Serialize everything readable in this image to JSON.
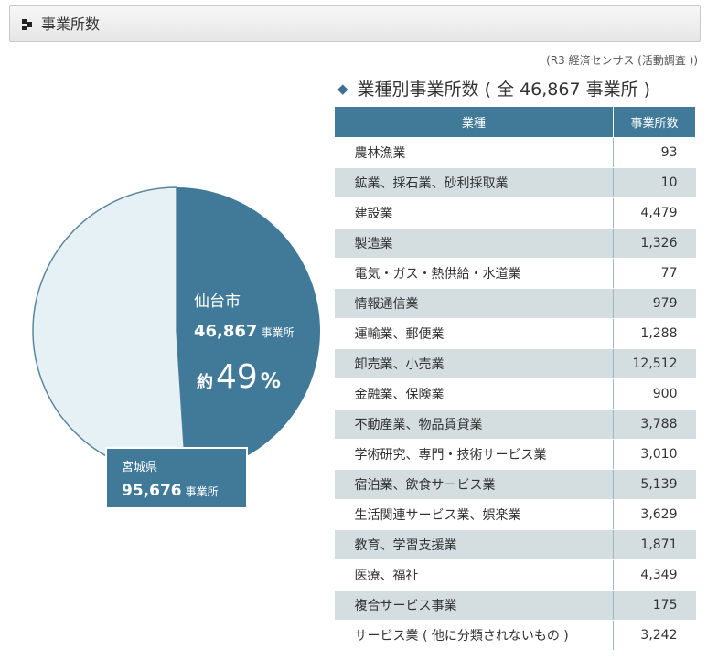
{
  "header": {
    "title": "事業所数"
  },
  "source_note": "(R3 経済センサス (活動調査 ))",
  "subtitle": "業種別事業所数 ( 全 46,867 事業所 )",
  "pie": {
    "sendai": {
      "label": "仙台市",
      "count": "46,867",
      "unit": "事業所",
      "approx_prefix": "約",
      "percent": "49",
      "percent_sign": "%"
    },
    "miyagi": {
      "label": "宮城県",
      "count": "95,676",
      "unit": "事業所"
    },
    "colors": {
      "sendai": "#417a99",
      "rest": "#e6f1f5",
      "outline": "#5a879f"
    }
  },
  "table": {
    "headers": [
      "業種",
      "事業所数"
    ],
    "colors": {
      "header": "#417a99",
      "stripe": "#d4dde0"
    }
  },
  "chart_data": [
    {
      "type": "pie",
      "categories": [
        "仙台市",
        "宮城県"
      ],
      "values": [
        46867,
        95676
      ],
      "title": "",
      "annotations": [
        "約49%"
      ]
    },
    {
      "type": "table",
      "title": "業種別事業所数 ( 全 46,867 事業所 )",
      "columns": [
        "業種",
        "事業所数"
      ],
      "rows": [
        {
          "name": "農林漁業",
          "value": "93"
        },
        {
          "name": "鉱業、採石業、砂利採取業",
          "value": "10"
        },
        {
          "name": "建設業",
          "value": "4,479"
        },
        {
          "name": "製造業",
          "value": "1,326"
        },
        {
          "name": "電気・ガス・熱供給・水道業",
          "value": "77"
        },
        {
          "name": "情報通信業",
          "value": "979"
        },
        {
          "name": "運輸業、郵便業",
          "value": "1,288"
        },
        {
          "name": "卸売業、小売業",
          "value": "12,512"
        },
        {
          "name": "金融業、保険業",
          "value": "900"
        },
        {
          "name": "不動産業、物品賃貸業",
          "value": "3,788"
        },
        {
          "name": "学術研究、専門・技術サービス業",
          "value": "3,010"
        },
        {
          "name": "宿泊業、飲食サービス業",
          "value": "5,139"
        },
        {
          "name": "生活関連サービス業、娯楽業",
          "value": "3,629"
        },
        {
          "name": "教育、学習支援業",
          "value": "1,871"
        },
        {
          "name": "医療、福祉",
          "value": "4,349"
        },
        {
          "name": "複合サービス事業",
          "value": "175"
        },
        {
          "name": "サービス業 ( 他に分類されないもの )",
          "value": "3,242"
        }
      ]
    }
  ]
}
